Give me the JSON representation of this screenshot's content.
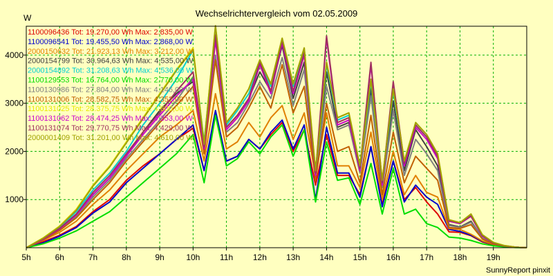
{
  "chart_data": {
    "type": "line",
    "title": "Wechselrichtervergleich vom 02.05.2009",
    "ylabel": "W",
    "xlabel": "",
    "footer": "SunnyReport pinxit",
    "x_range_hours": [
      5,
      20
    ],
    "ylim": [
      0,
      4600
    ],
    "x_ticks": [
      5,
      6,
      7,
      8,
      9,
      10,
      11,
      12,
      13,
      14,
      15,
      16,
      17,
      18,
      19
    ],
    "x_tick_labels": [
      "5h",
      "6h",
      "7h",
      "8h",
      "9h",
      "10h",
      "11h",
      "12h",
      "13h",
      "14h",
      "15h",
      "16h",
      "17h",
      "18h",
      "19h"
    ],
    "y_ticks": [
      1000,
      2000,
      3000,
      4000
    ],
    "y_tick_labels": [
      "1000",
      "2000",
      "3000",
      "4000"
    ],
    "grid": true,
    "legend_position": "top-left",
    "base_x": [
      5.0,
      5.5,
      6.0,
      6.5,
      7.0,
      7.5,
      8.0,
      8.5,
      9.0,
      9.5,
      10.0,
      10.33,
      10.67,
      11.0,
      11.33,
      11.67,
      12.0,
      12.33,
      12.67,
      13.0,
      13.33,
      13.67,
      14.0,
      14.33,
      14.67,
      15.0,
      15.33,
      15.67,
      16.0,
      16.33,
      16.67,
      17.0,
      17.33,
      17.67,
      18.0,
      18.33,
      18.67,
      19.0,
      19.33,
      19.67,
      20.0
    ],
    "series": [
      {
        "name": "1100096436 Tot: 19.270,00 Wh Max: 2.835,00 W",
        "color": "#dd0000",
        "values": [
          0,
          120,
          260,
          440,
          750,
          1000,
          1400,
          1700,
          1950,
          2250,
          2480,
          1600,
          2800,
          1800,
          1900,
          2250,
          2050,
          2350,
          2600,
          2000,
          2450,
          1300,
          2350,
          1500,
          1500,
          1100,
          2100,
          900,
          1800,
          1000,
          1250,
          950,
          700,
          330,
          320,
          250,
          120,
          60,
          30,
          10,
          0
        ]
      },
      {
        "name": "1100096541 Tot: 19.455,50 Wh Max: 2.868,00 W",
        "color": "#0000cc",
        "values": [
          0,
          100,
          240,
          420,
          720,
          950,
          1350,
          1650,
          1950,
          2250,
          2550,
          1600,
          2850,
          1800,
          1900,
          2250,
          2050,
          2400,
          2650,
          2050,
          2550,
          1000,
          2500,
          1550,
          1550,
          1050,
          2100,
          850,
          1800,
          950,
          1300,
          1050,
          900,
          380,
          340,
          260,
          130,
          70,
          30,
          10,
          0
        ]
      },
      {
        "name": "2000150632 Tot: 21.923,13 Wh Max: 3.212,00 W",
        "color": "#e08000",
        "values": [
          0,
          150,
          320,
          550,
          900,
          1200,
          1600,
          1950,
          2300,
          2550,
          2850,
          1800,
          3200,
          2050,
          2200,
          2600,
          2300,
          2700,
          2950,
          2250,
          2800,
          1500,
          2800,
          1700,
          1700,
          1250,
          2400,
          1000,
          2000,
          1100,
          1500,
          1150,
          1050,
          400,
          380,
          280,
          140,
          70,
          30,
          10,
          0
        ]
      },
      {
        "name": "2000154799 Tot: 30.964,63 Wh Max: 4.535,00 W",
        "color": "#404040",
        "values": [
          0,
          180,
          400,
          700,
          1100,
          1450,
          1900,
          2400,
          2850,
          3200,
          3450,
          2100,
          4350,
          2500,
          2750,
          3100,
          3650,
          3250,
          4200,
          3100,
          3850,
          1500,
          3650,
          2500,
          2600,
          1600,
          3300,
          1300,
          3050,
          1600,
          2450,
          2100,
          1700,
          480,
          430,
          550,
          200,
          90,
          40,
          10,
          0
        ]
      },
      {
        "name": "2000154892 Tot: 31.208,63 Wh Max: 4.536,00 W",
        "color": "#00d0d0",
        "values": [
          0,
          190,
          420,
          750,
          1200,
          1550,
          2000,
          2550,
          3000,
          3500,
          4100,
          2200,
          4500,
          2550,
          2850,
          3200,
          3850,
          3350,
          4300,
          3350,
          4100,
          1550,
          3800,
          2650,
          2750,
          1650,
          3450,
          1350,
          3250,
          1750,
          2550,
          2300,
          1900,
          560,
          500,
          680,
          260,
          100,
          40,
          10,
          0
        ]
      },
      {
        "name": "1100129553 Tot: 16.764,00 Wh Max: 2.770,00 W",
        "color": "#00dd00",
        "values": [
          0,
          80,
          200,
          350,
          550,
          750,
          1050,
          1350,
          1650,
          1950,
          2350,
          1350,
          2750,
          1700,
          1850,
          2200,
          1950,
          2300,
          2550,
          1900,
          2450,
          950,
          2200,
          1400,
          1450,
          900,
          1750,
          700,
          1650,
          700,
          800,
          500,
          420,
          220,
          200,
          150,
          80,
          40,
          20,
          5,
          0
        ]
      },
      {
        "name": "1100130986 Tot: 27.804,00 Wh Max: 4.146,00 W",
        "color": "#808080",
        "values": [
          0,
          170,
          380,
          650,
          1050,
          1400,
          1850,
          2250,
          2650,
          3050,
          3550,
          2000,
          4000,
          2400,
          2600,
          3000,
          3450,
          3100,
          3950,
          2950,
          3700,
          1450,
          3350,
          2450,
          2550,
          1550,
          3150,
          1250,
          2850,
          1500,
          2250,
          1950,
          1600,
          460,
          420,
          530,
          200,
          90,
          40,
          10,
          0
        ]
      },
      {
        "name": "1100131006 Tot: 28.582,75 Wh Max: 4.352,00 W",
        "color": "#c06000",
        "values": [
          0,
          160,
          360,
          620,
          1000,
          1350,
          1800,
          2200,
          2600,
          2950,
          3350,
          1950,
          3900,
          2300,
          2500,
          2900,
          3350,
          2900,
          3800,
          2800,
          3350,
          1400,
          3000,
          2000,
          2100,
          1350,
          2750,
          1100,
          2400,
          1350,
          1900,
          1650,
          1400,
          420,
          400,
          480,
          180,
          80,
          35,
          10,
          0
        ]
      },
      {
        "name": "1100131025 Tot: 28.375,75 Wh Max: 4.600,00 W",
        "color": "#e8e800",
        "values": [
          0,
          200,
          450,
          800,
          1300,
          1700,
          2200,
          2700,
          3200,
          3700,
          4150,
          2150,
          4600,
          2600,
          2900,
          3300,
          3900,
          3400,
          4350,
          3400,
          4150,
          1600,
          3850,
          2700,
          2800,
          1700,
          3500,
          1400,
          3300,
          1800,
          2600,
          2350,
          1950,
          580,
          520,
          700,
          270,
          110,
          45,
          10,
          0
        ]
      },
      {
        "name": "1100131062 Tot: 28.474,25 Wh Max: 4.353,00 W",
        "color": "#cc00cc",
        "values": [
          0,
          175,
          390,
          680,
          1100,
          1450,
          1900,
          2350,
          2750,
          3150,
          3500,
          2050,
          4300,
          2450,
          2700,
          3050,
          3800,
          3200,
          4250,
          3200,
          4000,
          1500,
          4350,
          2550,
          2650,
          1600,
          3800,
          1300,
          3400,
          1700,
          2500,
          2250,
          1850,
          550,
          500,
          650,
          240,
          100,
          40,
          10,
          0
        ]
      },
      {
        "name": "1100131074 Tot: 29.770,75 Wh Max: 4.429,00 W",
        "color": "#a03060",
        "values": [
          0,
          180,
          400,
          700,
          1150,
          1500,
          1950,
          2400,
          2800,
          3250,
          3650,
          2100,
          4420,
          2500,
          2750,
          3100,
          3850,
          3250,
          4300,
          3250,
          4050,
          1550,
          4400,
          2600,
          2700,
          1650,
          3850,
          1350,
          3450,
          1750,
          2550,
          2300,
          1900,
          560,
          510,
          660,
          250,
          100,
          40,
          10,
          0
        ]
      },
      {
        "name": "2000001409 Tot: 31.201,00 Wh Max: 4.610,00 W",
        "color": "#a0a000",
        "values": [
          0,
          195,
          440,
          780,
          1280,
          1680,
          2180,
          2680,
          3180,
          3680,
          4120,
          2150,
          4610,
          2600,
          2900,
          3300,
          3900,
          3400,
          4350,
          3400,
          4150,
          1600,
          3850,
          2700,
          2800,
          1700,
          3500,
          1400,
          3300,
          1800,
          2600,
          2350,
          1950,
          580,
          520,
          700,
          270,
          110,
          45,
          10,
          0
        ]
      }
    ]
  }
}
